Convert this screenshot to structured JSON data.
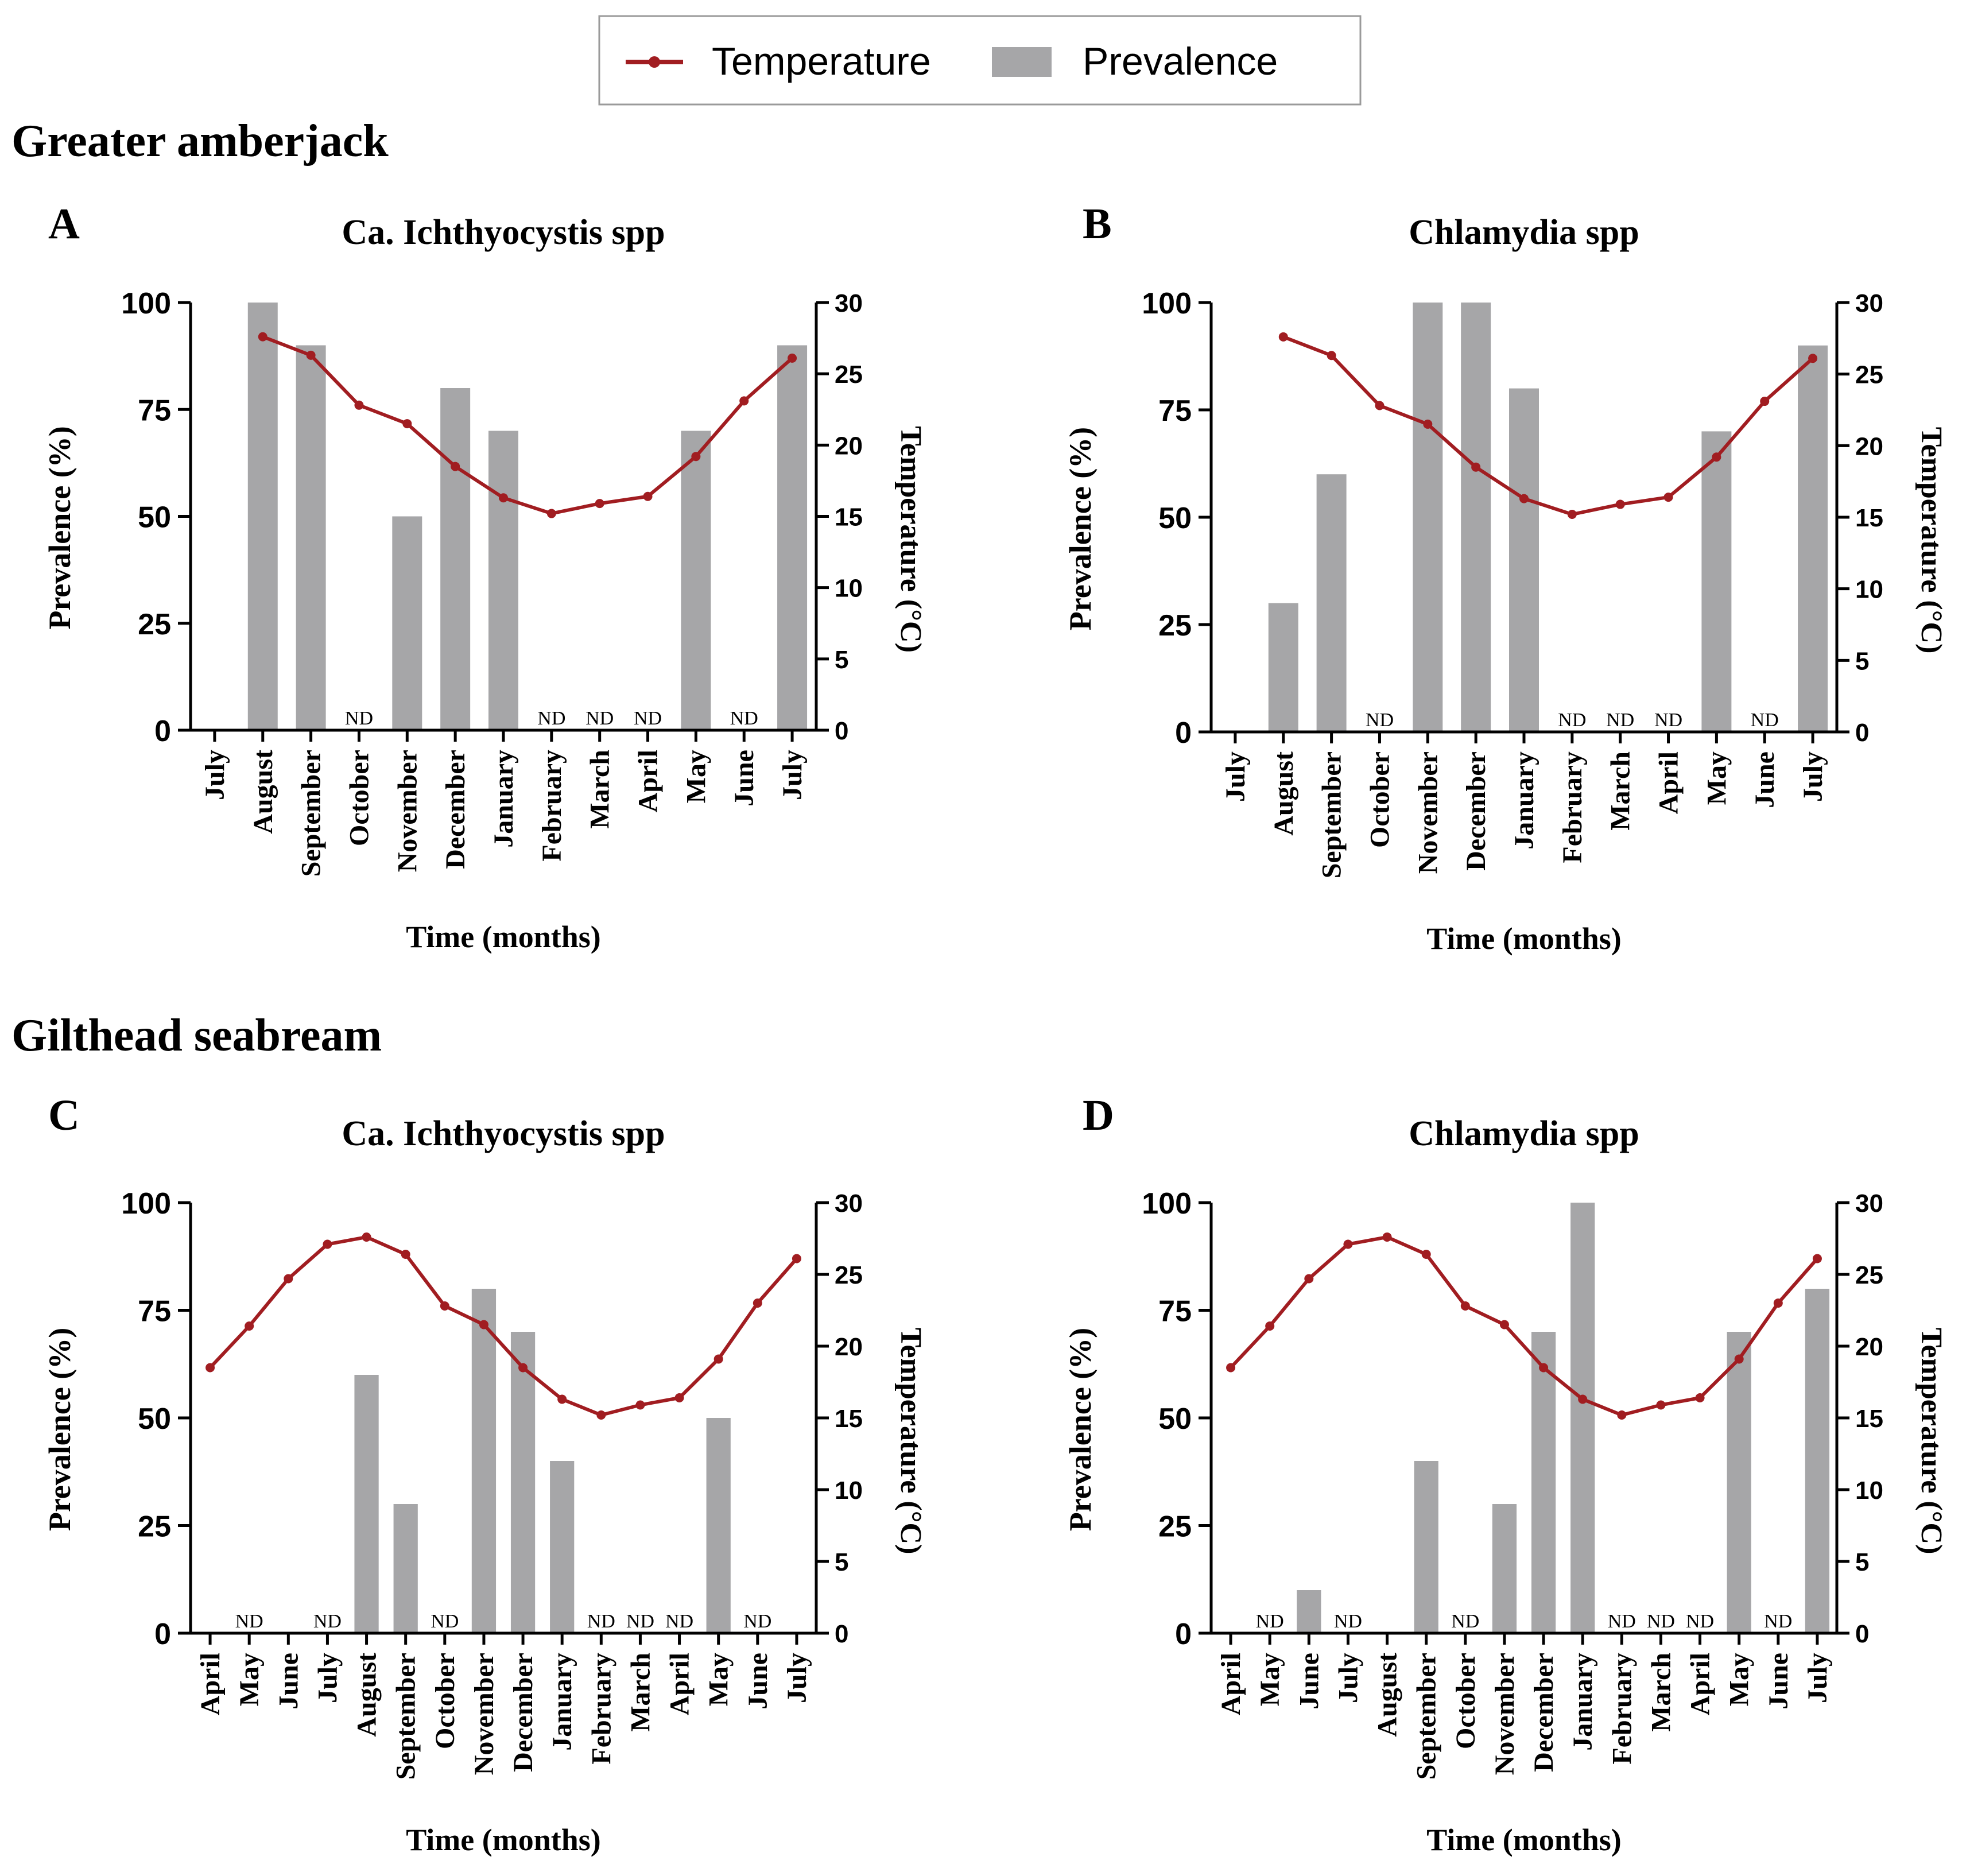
{
  "legend": {
    "temperature_label": "Temperature",
    "prevalence_label": "Prevalence"
  },
  "groups": [
    {
      "title": "Greater amberjack"
    },
    {
      "title": "Gilthead seabream"
    }
  ],
  "colors": {
    "bar": "#a6a6a8",
    "line": "#a11d21",
    "axis": "#000000"
  },
  "chart_data": [
    {
      "type": "bar",
      "panel": "A",
      "title": "Ca. Ichthyocystis spp",
      "xlabel": "Time (months)",
      "ylabel": "Prevalence (%)",
      "y2label": "Temperature (°C)",
      "ylim": [
        0,
        100
      ],
      "y2lim": [
        0,
        30
      ],
      "yticks": [
        0,
        25,
        50,
        75,
        100
      ],
      "y2ticks": [
        0,
        5,
        10,
        15,
        20,
        25,
        30
      ],
      "categories": [
        "July",
        "August",
        "September",
        "October",
        "November",
        "December",
        "January",
        "February",
        "March",
        "April",
        "May",
        "June",
        "July"
      ],
      "series": [
        {
          "name": "Prevalence",
          "kind": "bar",
          "values": [
            null,
            100,
            90,
            0,
            50,
            80,
            70,
            0,
            0,
            0,
            70,
            0,
            90
          ]
        },
        {
          "name": "Temperature",
          "kind": "line",
          "values": [
            null,
            27.6,
            26.3,
            22.8,
            21.5,
            18.5,
            16.3,
            15.2,
            15.9,
            16.4,
            19.2,
            23.1,
            26.1
          ]
        }
      ],
      "nd_label": "ND",
      "nd_indices": [
        3,
        7,
        8,
        9,
        11
      ]
    },
    {
      "type": "bar",
      "panel": "B",
      "title": "Chlamydia spp",
      "xlabel": "Time (months)",
      "ylabel": "Prevalence (%)",
      "y2label": "Temperature (°C)",
      "ylim": [
        0,
        100
      ],
      "y2lim": [
        0,
        30
      ],
      "yticks": [
        0,
        25,
        50,
        75,
        100
      ],
      "y2ticks": [
        0,
        5,
        10,
        15,
        20,
        25,
        30
      ],
      "categories": [
        "July",
        "August",
        "September",
        "October",
        "November",
        "December",
        "January",
        "February",
        "March",
        "April",
        "May",
        "June",
        "July"
      ],
      "series": [
        {
          "name": "Prevalence",
          "kind": "bar",
          "values": [
            null,
            30,
            60,
            0,
            100,
            100,
            80,
            0,
            0,
            0,
            70,
            0,
            90
          ]
        },
        {
          "name": "Temperature",
          "kind": "line",
          "values": [
            null,
            27.6,
            26.3,
            22.8,
            21.5,
            18.5,
            16.3,
            15.2,
            15.9,
            16.4,
            19.2,
            23.1,
            26.1
          ]
        }
      ],
      "nd_label": "ND",
      "nd_indices": [
        3,
        7,
        8,
        9,
        11
      ]
    },
    {
      "type": "bar",
      "panel": "C",
      "title": "Ca. Ichthyocystis spp",
      "xlabel": "Time (months)",
      "ylabel": "Prevalence (%)",
      "y2label": "Temperature (°C)",
      "ylim": [
        0,
        100
      ],
      "y2lim": [
        0,
        30
      ],
      "yticks": [
        0,
        25,
        50,
        75,
        100
      ],
      "y2ticks": [
        0,
        5,
        10,
        15,
        20,
        25,
        30
      ],
      "categories": [
        "April",
        "May",
        "June",
        "July",
        "August",
        "September",
        "October",
        "November",
        "December",
        "January",
        "February",
        "March",
        "April",
        "May",
        "June",
        "July"
      ],
      "series": [
        {
          "name": "Prevalence",
          "kind": "bar",
          "values": [
            null,
            0,
            null,
            0,
            60,
            30,
            0,
            80,
            70,
            40,
            0,
            0,
            0,
            50,
            0,
            null
          ]
        },
        {
          "name": "Temperature",
          "kind": "line",
          "values": [
            18.5,
            21.4,
            24.7,
            27.1,
            27.6,
            26.4,
            22.8,
            21.5,
            18.5,
            16.3,
            15.2,
            15.9,
            16.4,
            19.1,
            23.0,
            26.1
          ]
        }
      ],
      "nd_label": "ND",
      "nd_indices": [
        1,
        3,
        6,
        10,
        11,
        12,
        14
      ]
    },
    {
      "type": "bar",
      "panel": "D",
      "title": "Chlamydia spp",
      "xlabel": "Time (months)",
      "ylabel": "Prevalence (%)",
      "y2label": "Temperature (°C)",
      "ylim": [
        0,
        100
      ],
      "y2lim": [
        0,
        30
      ],
      "yticks": [
        0,
        25,
        50,
        75,
        100
      ],
      "y2ticks": [
        0,
        5,
        10,
        15,
        20,
        25,
        30
      ],
      "categories": [
        "April",
        "May",
        "June",
        "July",
        "August",
        "September",
        "October",
        "November",
        "December",
        "January",
        "February",
        "March",
        "April",
        "May",
        "June",
        "July"
      ],
      "series": [
        {
          "name": "Prevalence",
          "kind": "bar",
          "values": [
            null,
            0,
            10,
            0,
            null,
            40,
            0,
            30,
            70,
            100,
            0,
            0,
            0,
            70,
            0,
            80
          ]
        },
        {
          "name": "Temperature",
          "kind": "line",
          "values": [
            18.5,
            21.4,
            24.7,
            27.1,
            27.6,
            26.4,
            22.8,
            21.5,
            18.5,
            16.3,
            15.2,
            15.9,
            16.4,
            19.1,
            23.0,
            26.1
          ]
        }
      ],
      "nd_label": "ND",
      "nd_indices": [
        1,
        3,
        6,
        10,
        11,
        12,
        14
      ]
    }
  ]
}
